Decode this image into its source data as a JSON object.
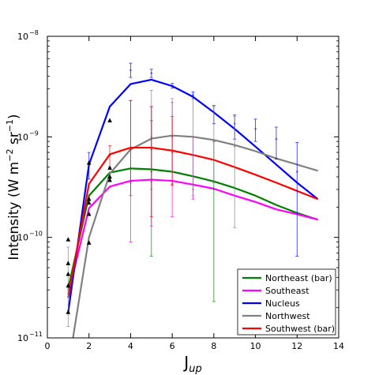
{
  "chart_data": {
    "type": "line",
    "title": "",
    "xlabel": {
      "main": "J",
      "sub": "up"
    },
    "ylabel": {
      "prefix": "Intensity (W m",
      "exp1": "−2",
      "middle": " sr",
      "exp2": "−1",
      "suffix": ")"
    },
    "xlim": [
      0,
      14
    ],
    "ylim": [
      1e-11,
      1e-08
    ],
    "yscale": "log",
    "grid": false,
    "legend_position": "bottom-right",
    "x_ticks": [
      0,
      2,
      4,
      6,
      8,
      10,
      12,
      14
    ],
    "y_ticks": [
      {
        "value": 1e-11,
        "base": "10",
        "exp": "−11"
      },
      {
        "value": 1e-10,
        "base": "10",
        "exp": "−10"
      },
      {
        "value": 1e-09,
        "base": "10",
        "exp": "−9"
      },
      {
        "value": 1e-08,
        "base": "10",
        "exp": "−8"
      }
    ],
    "series": [
      {
        "name": "Northeast (bar)",
        "color": "#008000",
        "x": [
          1,
          2,
          3,
          4,
          5,
          6,
          7,
          8,
          9,
          10,
          11,
          12,
          13
        ],
        "y": [
          3.1e-11,
          2.6e-10,
          4.4e-10,
          4.85e-10,
          4.75e-10,
          4.5e-10,
          4.05e-10,
          3.6e-10,
          3.1e-10,
          2.6e-10,
          2.1e-10,
          1.75e-10,
          1.5e-10
        ],
        "error_bars": [
          {
            "x": 5,
            "y": 4.5e-10,
            "lo": 6.5e-11,
            "hi": 1.45e-09
          },
          {
            "x": 8,
            "y": 3e-10,
            "lo": 2.3e-11,
            "hi": 9e-10
          }
        ]
      },
      {
        "name": "Southeast",
        "color": "#ff00ff",
        "x": [
          1,
          2,
          3,
          4,
          5,
          6,
          7,
          8,
          9,
          10,
          11,
          12,
          13
        ],
        "y": [
          2.7e-11,
          1.95e-10,
          3.2e-10,
          3.65e-10,
          3.75e-10,
          3.65e-10,
          3.35e-10,
          3.05e-10,
          2.6e-10,
          2.25e-10,
          1.9e-10,
          1.7e-10,
          1.5e-10
        ],
        "error_bars": [
          {
            "x": 4,
            "y": 3.5e-10,
            "lo": 9e-11,
            "hi": 2.3e-09
          },
          {
            "x": 5,
            "y": 3.6e-10,
            "lo": 1.3e-10,
            "hi": 2e-09
          },
          {
            "x": 6,
            "y": 3.4e-10,
            "lo": 1.6e-10,
            "hi": 2.2e-09
          },
          {
            "x": 7,
            "y": 3e-10,
            "lo": 2.4e-10,
            "hi": 1e-09
          }
        ]
      },
      {
        "name": "Nucleus",
        "color": "#0000ff",
        "x": [
          1,
          2,
          3,
          4,
          5,
          6,
          7,
          8,
          9,
          10,
          11,
          12,
          13
        ],
        "y": [
          1.8e-11,
          5.3e-10,
          2e-09,
          3.35e-09,
          3.7e-09,
          3.2e-09,
          2.5e-09,
          1.75e-09,
          1.2e-09,
          8e-10,
          5.3e-10,
          3.5e-10,
          2.4e-10
        ],
        "error_bars": [
          {
            "x": 2,
            "y": 5.3e-10,
            "lo": 3.8e-10,
            "hi": 7e-10
          },
          {
            "x": 4,
            "y": 4.6e-09,
            "lo": 3.9e-09,
            "hi": 5.4e-09
          },
          {
            "x": 5,
            "y": 4.3e-09,
            "lo": 3.9e-09,
            "hi": 4.7e-09
          },
          {
            "x": 6,
            "y": 3.2e-09,
            "lo": 3.05e-09,
            "hi": 3.4e-09
          },
          {
            "x": 7,
            "y": 2.6e-09,
            "lo": 2.4e-09,
            "hi": 2.8e-09
          },
          {
            "x": 8,
            "y": 1.75e-09,
            "lo": 1.35e-09,
            "hi": 2.05e-09
          },
          {
            "x": 9,
            "y": 1.35e-09,
            "lo": 9.5e-10,
            "hi": 1.65e-09
          },
          {
            "x": 10,
            "y": 1.2e-09,
            "lo": 9e-10,
            "hi": 1.5e-09
          },
          {
            "x": 11,
            "y": 9.5e-10,
            "lo": 6e-10,
            "hi": 1.25e-09
          },
          {
            "x": 12,
            "y": 4.5e-10,
            "lo": 6.5e-11,
            "hi": 8.8e-10
          }
        ]
      },
      {
        "name": "Northwest",
        "color": "#808080",
        "x": [
          1,
          2,
          3,
          4,
          5,
          6,
          7,
          8,
          9,
          10,
          11,
          12,
          13
        ],
        "y": [
          5e-12,
          1e-10,
          4.3e-10,
          7.5e-10,
          9.6e-10,
          1.03e-09,
          1e-09,
          9.3e-10,
          8.3e-10,
          7.2e-10,
          6.1e-10,
          5.3e-10,
          4.6e-10
        ],
        "error_bars": [
          {
            "x": 1,
            "y": 3e-11,
            "lo": 1.3e-11,
            "hi": 8e-11
          },
          {
            "x": 5,
            "y": 1e-09,
            "lo": 3e-10,
            "hi": 2.9e-09
          },
          {
            "x": 6,
            "y": 1e-09,
            "lo": 4.5e-10,
            "hi": 2.4e-09
          },
          {
            "x": 7,
            "y": 1e-09,
            "lo": 2.6e-10,
            "hi": 2.4e-09
          },
          {
            "x": 8,
            "y": 9e-10,
            "lo": 3.5e-10,
            "hi": 2e-09
          },
          {
            "x": 9,
            "y": 8e-10,
            "lo": 1.25e-10,
            "hi": 1.6e-09
          }
        ]
      },
      {
        "name": "Southwest (bar)",
        "color": "#ff0000",
        "x": [
          1,
          2,
          3,
          4,
          5,
          6,
          7,
          8,
          9,
          10,
          11,
          12,
          13
        ],
        "y": [
          2.5e-11,
          3.4e-10,
          6.7e-10,
          7.8e-10,
          7.8e-10,
          7.3e-10,
          6.6e-10,
          5.9e-10,
          5e-10,
          4.2e-10,
          3.5e-10,
          2.9e-10,
          2.4e-10
        ],
        "error_bars": [
          {
            "x": 3,
            "y": 6.5e-10,
            "lo": 5e-10,
            "hi": 8.2e-10
          },
          {
            "x": 4,
            "y": 7.5e-10,
            "lo": 2.6e-10,
            "hi": 2.3e-09
          },
          {
            "x": 5,
            "y": 7.5e-10,
            "lo": 1.6e-10,
            "hi": 2e-09
          },
          {
            "x": 6,
            "y": 7e-10,
            "lo": 3.3e-10,
            "hi": 1.6e-09
          }
        ]
      }
    ],
    "observed_points": {
      "color": "#000000",
      "marker": "triangle",
      "x": [
        1,
        1,
        1,
        1,
        1,
        2,
        2,
        2,
        2,
        2,
        3,
        3,
        3,
        3
      ],
      "y": [
        1.8e-11,
        3.3e-11,
        4.3e-11,
        5.5e-11,
        9.5e-11,
        8.8e-11,
        1.7e-10,
        2.2e-10,
        2.4e-10,
        5.5e-10,
        3.7e-10,
        4e-10,
        4.9e-10,
        1.45e-09
      ]
    }
  }
}
